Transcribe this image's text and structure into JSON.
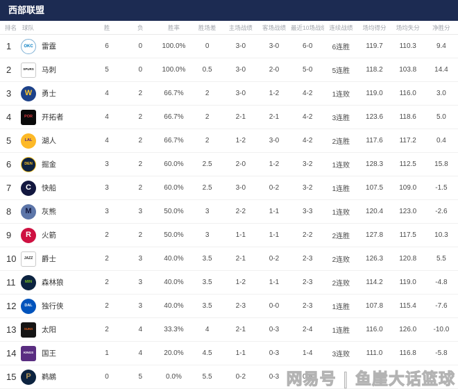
{
  "panel": {
    "title": "西部联盟"
  },
  "colors": {
    "title_bar_bg": "#1c2b52",
    "title_text": "#ffffff",
    "column_header_text": "#a2a6ac",
    "row_border": "#f0f0f0",
    "body_text": "#4a4a4a"
  },
  "columns": [
    "排名",
    "球队",
    "胜",
    "负",
    "胜率",
    "胜场差",
    "主场战绩",
    "客场战绩",
    "最近10场战绩",
    "连续战绩",
    "场均得分",
    "场均失分",
    "净胜分"
  ],
  "teams": [
    {
      "rank": "1",
      "name": "雷霆",
      "logo": {
        "icon": "thunder-logo-icon",
        "shape": "circle",
        "bg": "#ffffff",
        "border": "#7db0d5",
        "fg": "#007ac1",
        "label": "OKC",
        "size": 6
      },
      "stats": {
        "wins": "6",
        "losses": "0",
        "win_pct": "100.0%",
        "games_behind": "0",
        "home": "3-0",
        "away": "3-0",
        "last10": "6-0",
        "streak": "6连胜",
        "points_for": "119.7",
        "points_against": "110.3",
        "point_diff": "9.4"
      }
    },
    {
      "rank": "2",
      "name": "马刺",
      "logo": {
        "icon": "spurs-logo-icon",
        "shape": "square",
        "bg": "#ffffff",
        "border": "#c9c9c9",
        "fg": "#1a1a1a",
        "label": "SPURS",
        "size": 4.5
      },
      "stats": {
        "wins": "5",
        "losses": "0",
        "win_pct": "100.0%",
        "games_behind": "0.5",
        "home": "3-0",
        "away": "2-0",
        "last10": "5-0",
        "streak": "5连胜",
        "points_for": "118.2",
        "points_against": "103.8",
        "point_diff": "14.4"
      }
    },
    {
      "rank": "3",
      "name": "勇士",
      "logo": {
        "icon": "warriors-logo-icon",
        "shape": "circle",
        "bg": "#1d428a",
        "border": "",
        "fg": "#ffc72c",
        "label": "W",
        "size": 11
      },
      "stats": {
        "wins": "4",
        "losses": "2",
        "win_pct": "66.7%",
        "games_behind": "2",
        "home": "3-0",
        "away": "1-2",
        "last10": "4-2",
        "streak": "1连败",
        "points_for": "119.0",
        "points_against": "116.0",
        "point_diff": "3.0"
      }
    },
    {
      "rank": "4",
      "name": "开拓者",
      "logo": {
        "icon": "blazers-logo-icon",
        "shape": "square",
        "bg": "#0a0a0a",
        "border": "",
        "fg": "#e03a3e",
        "label": "POR",
        "size": 5.5
      },
      "stats": {
        "wins": "4",
        "losses": "2",
        "win_pct": "66.7%",
        "games_behind": "2",
        "home": "2-1",
        "away": "2-1",
        "last10": "4-2",
        "streak": "3连胜",
        "points_for": "123.6",
        "points_against": "118.6",
        "point_diff": "5.0"
      }
    },
    {
      "rank": "5",
      "name": "湖人",
      "logo": {
        "icon": "lakers-logo-icon",
        "shape": "circle",
        "bg": "#fdb927",
        "border": "",
        "fg": "#552583",
        "label": "LAL",
        "size": 5.5
      },
      "stats": {
        "wins": "4",
        "losses": "2",
        "win_pct": "66.7%",
        "games_behind": "2",
        "home": "1-2",
        "away": "3-0",
        "last10": "4-2",
        "streak": "2连胜",
        "points_for": "117.6",
        "points_against": "117.2",
        "point_diff": "0.4"
      }
    },
    {
      "rank": "6",
      "name": "掘金",
      "logo": {
        "icon": "nuggets-logo-icon",
        "shape": "circle",
        "bg": "#0e2240",
        "border": "#fec524",
        "fg": "#fec524",
        "label": "DEN",
        "size": 5.5
      },
      "stats": {
        "wins": "3",
        "losses": "2",
        "win_pct": "60.0%",
        "games_behind": "2.5",
        "home": "2-0",
        "away": "1-2",
        "last10": "3-2",
        "streak": "1连败",
        "points_for": "128.3",
        "points_against": "112.5",
        "point_diff": "15.8"
      }
    },
    {
      "rank": "7",
      "name": "快船",
      "logo": {
        "icon": "clippers-logo-icon",
        "shape": "circle",
        "bg": "#12173f",
        "border": "",
        "fg": "#ffffff",
        "label": "C",
        "size": 11
      },
      "stats": {
        "wins": "3",
        "losses": "2",
        "win_pct": "60.0%",
        "games_behind": "2.5",
        "home": "3-0",
        "away": "0-2",
        "last10": "3-2",
        "streak": "1连胜",
        "points_for": "107.5",
        "points_against": "109.0",
        "point_diff": "-1.5"
      }
    },
    {
      "rank": "8",
      "name": "灰熊",
      "logo": {
        "icon": "grizzlies-logo-icon",
        "shape": "circle",
        "bg": "#5d76a9",
        "border": "",
        "fg": "#12173f",
        "label": "M",
        "size": 11
      },
      "stats": {
        "wins": "3",
        "losses": "3",
        "win_pct": "50.0%",
        "games_behind": "3",
        "home": "2-2",
        "away": "1-1",
        "last10": "3-3",
        "streak": "1连败",
        "points_for": "120.4",
        "points_against": "123.0",
        "point_diff": "-2.6"
      }
    },
    {
      "rank": "9",
      "name": "火箭",
      "logo": {
        "icon": "rockets-logo-icon",
        "shape": "circle",
        "bg": "#ce1141",
        "border": "",
        "fg": "#ffffff",
        "label": "R",
        "size": 11
      },
      "stats": {
        "wins": "2",
        "losses": "2",
        "win_pct": "50.0%",
        "games_behind": "3",
        "home": "1-1",
        "away": "1-1",
        "last10": "2-2",
        "streak": "2连胜",
        "points_for": "127.8",
        "points_against": "117.5",
        "point_diff": "10.3"
      }
    },
    {
      "rank": "10",
      "name": "爵士",
      "logo": {
        "icon": "jazz-logo-icon",
        "shape": "square",
        "bg": "#ffffff",
        "border": "#c9c9c9",
        "fg": "#2b2b2b",
        "label": "JAZZ",
        "size": 5
      },
      "stats": {
        "wins": "2",
        "losses": "3",
        "win_pct": "40.0%",
        "games_behind": "3.5",
        "home": "2-1",
        "away": "0-2",
        "last10": "2-3",
        "streak": "2连败",
        "points_for": "126.3",
        "points_against": "120.8",
        "point_diff": "5.5"
      }
    },
    {
      "rank": "11",
      "name": "森林狼",
      "logo": {
        "icon": "timberwolves-logo-icon",
        "shape": "circle",
        "bg": "#0c2340",
        "border": "",
        "fg": "#78be20",
        "label": "MIN",
        "size": 5.5
      },
      "stats": {
        "wins": "2",
        "losses": "3",
        "win_pct": "40.0%",
        "games_behind": "3.5",
        "home": "1-2",
        "away": "1-1",
        "last10": "2-3",
        "streak": "2连败",
        "points_for": "114.2",
        "points_against": "119.0",
        "point_diff": "-4.8"
      }
    },
    {
      "rank": "12",
      "name": "独行侠",
      "logo": {
        "icon": "mavericks-logo-icon",
        "shape": "circle",
        "bg": "#0053bc",
        "border": "",
        "fg": "#ffffff",
        "label": "DAL",
        "size": 5.5
      },
      "stats": {
        "wins": "2",
        "losses": "3",
        "win_pct": "40.0%",
        "games_behind": "3.5",
        "home": "2-3",
        "away": "0-0",
        "last10": "2-3",
        "streak": "1连胜",
        "points_for": "107.8",
        "points_against": "115.4",
        "point_diff": "-7.6"
      }
    },
    {
      "rank": "13",
      "name": "太阳",
      "logo": {
        "icon": "suns-logo-icon",
        "shape": "square",
        "bg": "#151515",
        "border": "",
        "fg": "#e56020",
        "label": "SUNS",
        "size": 4.5
      },
      "stats": {
        "wins": "2",
        "losses": "4",
        "win_pct": "33.3%",
        "games_behind": "4",
        "home": "2-1",
        "away": "0-3",
        "last10": "2-4",
        "streak": "1连胜",
        "points_for": "116.0",
        "points_against": "126.0",
        "point_diff": "-10.0"
      }
    },
    {
      "rank": "14",
      "name": "国王",
      "logo": {
        "icon": "kings-logo-icon",
        "shape": "square",
        "bg": "#5a2d81",
        "border": "",
        "fg": "#ffffff",
        "label": "KINGS",
        "size": 4.5
      },
      "stats": {
        "wins": "1",
        "losses": "4",
        "win_pct": "20.0%",
        "games_behind": "4.5",
        "home": "1-1",
        "away": "0-3",
        "last10": "1-4",
        "streak": "3连败",
        "points_for": "111.0",
        "points_against": "116.8",
        "point_diff": "-5.8"
      }
    },
    {
      "rank": "15",
      "name": "鹈鹕",
      "logo": {
        "icon": "pelicans-logo-icon",
        "shape": "circle",
        "bg": "#0c2340",
        "border": "",
        "fg": "#b4975a",
        "label": "P",
        "size": 11
      },
      "stats": {
        "wins": "0",
        "losses": "5",
        "win_pct": "0.0%",
        "games_behind": "5.5",
        "home": "0-2",
        "away": "0-3",
        "last10": "0-5",
        "streak": "",
        "points_for": "",
        "points_against": "",
        "point_diff": ""
      }
    }
  ],
  "watermark": {
    "text": "网易号 | 鱼崖大话篮球"
  }
}
